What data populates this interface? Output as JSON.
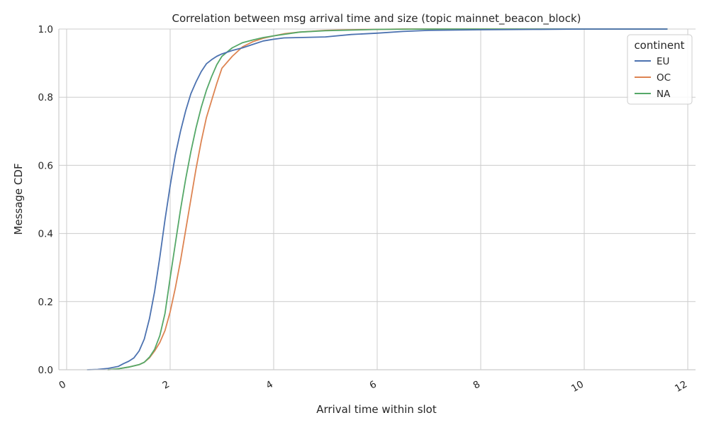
{
  "chart_data": {
    "type": "line",
    "title": "Correlation between msg arrival time and size (topic mainnet_beacon_block)",
    "xlabel": "Arrival time within slot",
    "ylabel": "Message CDF",
    "xlim": [
      -0.15,
      12.15
    ],
    "ylim": [
      0,
      1
    ],
    "xticks": [
      0,
      2,
      4,
      6,
      8,
      10,
      12
    ],
    "yticks": [
      0.0,
      0.2,
      0.4,
      0.6,
      0.8,
      1.0
    ],
    "xtick_labels": [
      "0",
      "2",
      "4",
      "6",
      "8",
      "10",
      "12"
    ],
    "ytick_labels": [
      "0.0",
      "0.2",
      "0.4",
      "0.6",
      "0.8",
      "1.0"
    ],
    "grid": true,
    "legend": {
      "title": "continent",
      "position": "top-right"
    },
    "series": [
      {
        "name": "EU",
        "color": "#4c72b0",
        "x": [
          0.4,
          0.6,
          0.8,
          1.0,
          1.1,
          1.2,
          1.3,
          1.4,
          1.5,
          1.6,
          1.7,
          1.8,
          1.9,
          2.0,
          2.1,
          2.2,
          2.3,
          2.4,
          2.5,
          2.6,
          2.7,
          2.8,
          2.9,
          3.0,
          3.2,
          3.4,
          3.6,
          3.8,
          4.0,
          4.2,
          4.5,
          5.0,
          5.5,
          6.0,
          6.5,
          7.0,
          8.0,
          9.0,
          10.0,
          11.0,
          11.6
        ],
        "y": [
          0.0,
          0.001,
          0.004,
          0.01,
          0.018,
          0.025,
          0.035,
          0.055,
          0.09,
          0.15,
          0.23,
          0.33,
          0.44,
          0.54,
          0.63,
          0.7,
          0.76,
          0.81,
          0.845,
          0.875,
          0.898,
          0.91,
          0.92,
          0.927,
          0.937,
          0.945,
          0.955,
          0.965,
          0.97,
          0.974,
          0.975,
          0.977,
          0.984,
          0.988,
          0.993,
          0.996,
          0.998,
          0.999,
          1.0,
          1.0,
          1.0
        ]
      },
      {
        "name": "OC",
        "color": "#dd8452",
        "x": [
          0.8,
          1.0,
          1.2,
          1.4,
          1.5,
          1.6,
          1.7,
          1.8,
          1.9,
          2.0,
          2.1,
          2.2,
          2.3,
          2.4,
          2.5,
          2.6,
          2.7,
          2.8,
          2.9,
          3.0,
          3.2,
          3.4,
          3.6,
          3.8,
          4.0,
          4.2,
          4.5,
          5.0,
          5.5,
          6.0,
          6.5,
          7.0,
          8.0,
          10.0,
          11.6
        ],
        "y": [
          0.0,
          0.003,
          0.008,
          0.015,
          0.022,
          0.035,
          0.055,
          0.08,
          0.115,
          0.17,
          0.24,
          0.32,
          0.41,
          0.5,
          0.59,
          0.67,
          0.74,
          0.79,
          0.84,
          0.885,
          0.92,
          0.948,
          0.963,
          0.973,
          0.98,
          0.986,
          0.991,
          0.996,
          0.998,
          0.999,
          1.0,
          1.0,
          1.0,
          1.0,
          1.0
        ]
      },
      {
        "name": "NA",
        "color": "#55a868",
        "x": [
          0.8,
          1.0,
          1.2,
          1.4,
          1.5,
          1.6,
          1.7,
          1.8,
          1.9,
          2.0,
          2.1,
          2.2,
          2.3,
          2.4,
          2.5,
          2.6,
          2.7,
          2.8,
          2.9,
          3.0,
          3.2,
          3.4,
          3.6,
          3.8,
          4.0,
          4.5,
          5.0,
          6.0,
          7.0,
          8.0,
          10.0,
          11.6
        ],
        "y": [
          0.0,
          0.003,
          0.008,
          0.015,
          0.022,
          0.037,
          0.06,
          0.1,
          0.165,
          0.27,
          0.37,
          0.47,
          0.56,
          0.64,
          0.71,
          0.77,
          0.82,
          0.86,
          0.895,
          0.92,
          0.945,
          0.96,
          0.968,
          0.975,
          0.98,
          0.991,
          0.995,
          0.999,
          1.0,
          1.0,
          1.0,
          1.0
        ]
      }
    ]
  }
}
